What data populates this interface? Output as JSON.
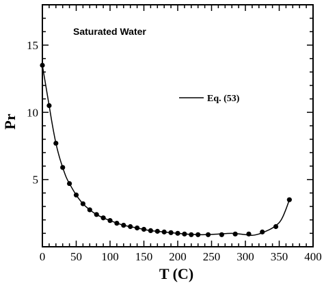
{
  "chart_data": {
    "type": "scatter",
    "annotation": "Saturated Water",
    "xlabel": "T (C)",
    "ylabel": "Pr",
    "xlim": [
      0,
      400
    ],
    "ylim": [
      0,
      18
    ],
    "x_ticks": [
      0,
      50,
      100,
      150,
      200,
      250,
      300,
      350,
      400
    ],
    "y_ticks": [
      5,
      10,
      15
    ],
    "legend": {
      "label": "Eq. (53)",
      "placement": "upper-right inside"
    },
    "series": [
      {
        "kind": "points",
        "x": [
          0.01,
          10,
          20,
          30,
          40,
          50,
          60,
          70,
          80,
          90,
          100,
          110,
          120,
          130,
          140,
          150,
          160,
          170,
          180,
          190,
          200,
          210,
          220,
          230,
          245,
          265,
          285,
          305,
          325,
          345,
          365
        ],
        "y": [
          13.5,
          10.5,
          7.7,
          5.9,
          4.7,
          3.85,
          3.2,
          2.75,
          2.4,
          2.15,
          1.95,
          1.75,
          1.6,
          1.5,
          1.4,
          1.3,
          1.2,
          1.15,
          1.1,
          1.05,
          1.0,
          0.95,
          0.9,
          0.9,
          0.9,
          0.9,
          0.95,
          0.95,
          1.1,
          1.5,
          3.5
        ]
      },
      {
        "name": "Eq. (53)",
        "kind": "line",
        "x": [
          0,
          5,
          10,
          15,
          20,
          25,
          30,
          35,
          40,
          50,
          60,
          70,
          80,
          90,
          100,
          120,
          140,
          160,
          180,
          200,
          220,
          240,
          260,
          280,
          300,
          310,
          320,
          330,
          340,
          350,
          355,
          360,
          365
        ],
        "y": [
          13.5,
          12.0,
          10.5,
          9.0,
          7.7,
          6.7,
          5.9,
          5.2,
          4.7,
          3.85,
          3.2,
          2.75,
          2.4,
          2.15,
          1.95,
          1.6,
          1.4,
          1.2,
          1.1,
          1.0,
          0.92,
          0.9,
          0.95,
          1.0,
          0.9,
          0.85,
          0.95,
          1.15,
          1.4,
          1.8,
          2.2,
          2.8,
          3.5
        ]
      }
    ]
  }
}
